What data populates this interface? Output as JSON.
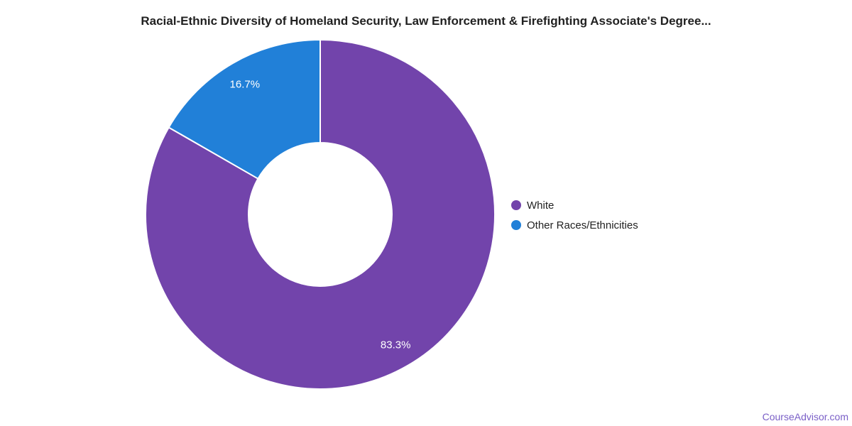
{
  "chart": {
    "title": "Racial-Ethnic Diversity of Homeland Security, Law Enforcement & Firefighting Associate's Degree..."
  },
  "chart_data": {
    "type": "pie",
    "subtype": "donut",
    "title": "Racial-Ethnic Diversity of Homeland Security, Law Enforcement & Firefighting Associate's Degree...",
    "categories": [
      "White",
      "Other Races/Ethnicities"
    ],
    "values": [
      83.3,
      16.7
    ],
    "unit": "%",
    "labels": [
      "83.3%",
      "16.7%"
    ],
    "colors": [
      "#7244ab",
      "#2180d8"
    ],
    "slice_label_color": "#ffffff",
    "slice_border_color": "#ffffff",
    "start_angle_deg": 0,
    "direction": "clockwise",
    "inner_radius_ratio": 0.41,
    "legend_position": "right"
  },
  "legend": {
    "items": [
      {
        "label": "White",
        "color": "#7244ab"
      },
      {
        "label": "Other Races/Ethnicities",
        "color": "#2180d8"
      }
    ]
  },
  "footer": {
    "watermark": "CourseAdvisor.com",
    "color": "#7a5fc7"
  }
}
